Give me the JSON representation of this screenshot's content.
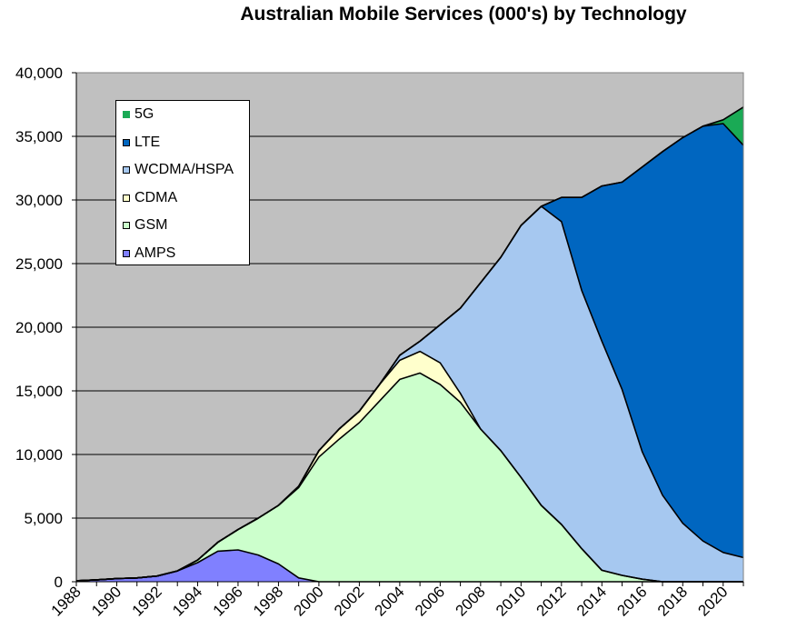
{
  "chart_data": {
    "type": "area",
    "stacked": true,
    "title": "Australian Mobile Services (000's) by Technology",
    "xlabel": "",
    "ylabel": "",
    "x": [
      1988,
      1989,
      1990,
      1991,
      1992,
      1993,
      1994,
      1995,
      1996,
      1997,
      1998,
      1999,
      2000,
      2001,
      2002,
      2003,
      2004,
      2005,
      2006,
      2007,
      2008,
      2009,
      2010,
      2011,
      2012,
      2013,
      2014,
      2015,
      2016,
      2017,
      2018,
      2019,
      2020,
      2021
    ],
    "x_tick_labels": [
      "1988",
      "1990",
      "1992",
      "1994",
      "1996",
      "1998",
      "2000",
      "2002",
      "2004",
      "2006",
      "2008",
      "2010",
      "2012",
      "2014",
      "2016",
      "2018",
      "2020"
    ],
    "xlim": [
      1988,
      2021
    ],
    "ylim": [
      0,
      40000
    ],
    "y_ticks": [
      0,
      5000,
      10000,
      15000,
      20000,
      25000,
      30000,
      35000,
      40000
    ],
    "y_tick_labels": [
      "0",
      "5,000",
      "10,000",
      "15,000",
      "20,000",
      "25,000",
      "30,000",
      "35,000",
      "40,000"
    ],
    "grid": true,
    "legend_position": "top-left",
    "legend_order": [
      "5G",
      "LTE",
      "WCDMA/HSPA",
      "CDMA",
      "GSM",
      "AMPS"
    ],
    "series": [
      {
        "name": "AMPS",
        "color": "#8080ff",
        "values": [
          80,
          150,
          250,
          300,
          450,
          850,
          1500,
          2400,
          2500,
          2100,
          1400,
          300,
          0,
          0,
          0,
          0,
          0,
          0,
          0,
          0,
          0,
          0,
          0,
          0,
          0,
          0,
          0,
          0,
          0,
          0,
          0,
          0,
          0,
          0
        ]
      },
      {
        "name": "GSM",
        "color": "#ccffcc",
        "values": [
          0,
          0,
          0,
          0,
          0,
          0,
          200,
          700,
          1600,
          2900,
          4600,
          7100,
          9800,
          11200,
          12500,
          14200,
          15900,
          16400,
          15500,
          14100,
          12000,
          10300,
          8200,
          6000,
          4500,
          2600,
          900,
          500,
          200,
          0,
          0,
          0,
          0,
          0
        ]
      },
      {
        "name": "CDMA",
        "color": "#ffffcc",
        "values": [
          0,
          0,
          0,
          0,
          0,
          0,
          0,
          0,
          0,
          0,
          0,
          100,
          500,
          800,
          900,
          1300,
          1500,
          1700,
          1700,
          700,
          0,
          0,
          0,
          0,
          0,
          0,
          0,
          0,
          0,
          0,
          0,
          0,
          0,
          0
        ]
      },
      {
        "name": "WCDMA/HSPA",
        "color": "#a6c8f0",
        "values": [
          0,
          0,
          0,
          0,
          0,
          0,
          0,
          0,
          0,
          0,
          0,
          0,
          0,
          0,
          0,
          0,
          400,
          800,
          3000,
          6700,
          11500,
          15200,
          19800,
          23500,
          23800,
          20300,
          18000,
          14600,
          10000,
          6800,
          4600,
          3200,
          2300,
          1900
        ]
      },
      {
        "name": "LTE",
        "color": "#0066c0",
        "values": [
          0,
          0,
          0,
          0,
          0,
          0,
          0,
          0,
          0,
          0,
          0,
          0,
          0,
          0,
          0,
          0,
          0,
          0,
          0,
          0,
          0,
          0,
          0,
          0,
          1900,
          7300,
          12200,
          16300,
          22400,
          27000,
          30300,
          32600,
          33700,
          32400
        ]
      },
      {
        "name": "5G",
        "color": "#1aaa55",
        "values": [
          0,
          0,
          0,
          0,
          0,
          0,
          0,
          0,
          0,
          0,
          0,
          0,
          0,
          0,
          0,
          0,
          0,
          0,
          0,
          0,
          0,
          0,
          0,
          0,
          0,
          0,
          0,
          0,
          0,
          0,
          0,
          0,
          300,
          3000
        ]
      }
    ]
  }
}
